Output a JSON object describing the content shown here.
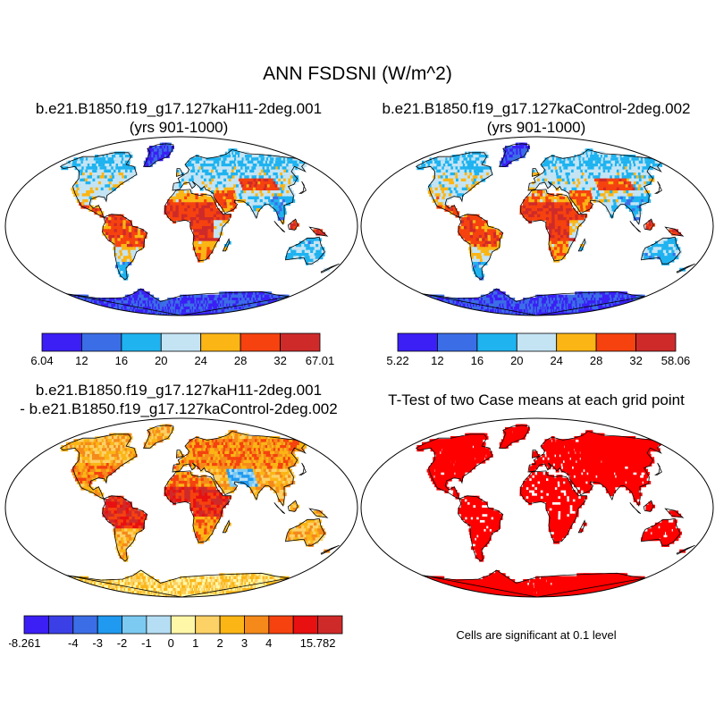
{
  "main_title": "ANN FSDSNI (W/m^2)",
  "panels": {
    "top_left": {
      "title_line1": "b.e21.B1850.f19_g17.127kaH11-2deg.001",
      "title_line2": "(yrs 901-1000)"
    },
    "top_right": {
      "title_line1": "b.e21.B1850.f19_g17.127kaControl-2deg.002",
      "title_line2": "(yrs 901-1000)"
    },
    "bottom_left": {
      "title_line1": "b.e21.B1850.f19_g17.127kaH11-2deg.001",
      "title_line2": "- b.e21.B1850.f19_g17.127kaControl-2deg.002"
    },
    "bottom_right": {
      "title_line1": "T-Test of two Case means at each grid point",
      "note": "Cells are significant at 0.1 level"
    }
  },
  "chart_data": [
    {
      "type": "heatmap",
      "panel": "top_left",
      "colorbar": {
        "labels": [
          "6.04",
          "12",
          "16",
          "20",
          "24",
          "28",
          "32",
          "67.01"
        ],
        "colors": [
          "#3b1ff5",
          "#3b6ee6",
          "#1fb3f0",
          "#c4e4f4",
          "#fbb515",
          "#f5420f",
          "#cf2a2a"
        ]
      }
    },
    {
      "type": "heatmap",
      "panel": "top_right",
      "colorbar": {
        "labels": [
          "5.22",
          "12",
          "16",
          "20",
          "24",
          "28",
          "32",
          "58.06"
        ],
        "colors": [
          "#3b1ff5",
          "#3b6ee6",
          "#1fb3f0",
          "#c4e4f4",
          "#fbb515",
          "#f5420f",
          "#cf2a2a"
        ]
      }
    },
    {
      "type": "heatmap",
      "panel": "bottom_left",
      "colorbar": {
        "labels": [
          "-8.261",
          "",
          "-4",
          "-3",
          "-2",
          "-1",
          "0",
          "1",
          "2",
          "3",
          "4",
          "",
          "15.782"
        ],
        "colors": [
          "#3b1ff5",
          "#3b3fe6",
          "#3b6ee6",
          "#1f9af0",
          "#7ccaf2",
          "#b5def4",
          "#fff7a8",
          "#fcd166",
          "#fbb515",
          "#f58a1a",
          "#f5420f",
          "#e81010",
          "#cf2a2a"
        ]
      }
    },
    {
      "type": "heatmap",
      "panel": "bottom_right",
      "significant_color": "#ff0000"
    }
  ]
}
